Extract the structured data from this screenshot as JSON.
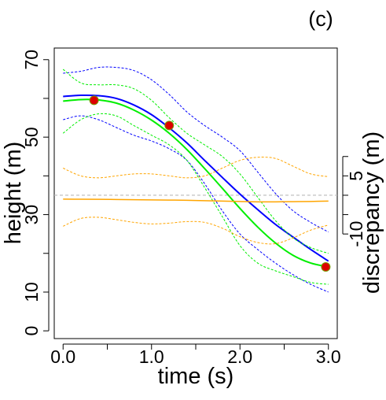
{
  "panel_label": "(c)",
  "chart_data": {
    "type": "line",
    "xlabel": "time (s)",
    "ylabel": "height (m)",
    "y2label": "discrepancy (m)",
    "xlim": [
      -0.1,
      3.1
    ],
    "ylim": [
      -2,
      73
    ],
    "x_ticks": [
      "0.0",
      "1.0",
      "2.0",
      "3.0"
    ],
    "x_tick_values": [
      0,
      1,
      2,
      3
    ],
    "y_tick_labels": [
      "0",
      "10",
      "30",
      "50",
      "70"
    ],
    "y_tick_label_values": [
      0,
      10,
      30,
      50,
      70
    ],
    "y_minor_ticks": [
      20,
      40,
      60
    ],
    "y2_zero_at": 35,
    "y2_tick_labels": [
      "5",
      "-10"
    ],
    "y2_tick_label_values": [
      5,
      -10
    ],
    "y2_ticks": [
      10,
      5,
      0,
      -5,
      -10
    ],
    "grid": false,
    "colors": {
      "blue": "#0000ff",
      "green": "#00ee00",
      "orange": "#ffa500",
      "red": "#dd0000",
      "zero": "#bbbbbb"
    },
    "series": [
      {
        "id": "blue_mean",
        "color": "#0000ff",
        "dashed": false,
        "width": 2,
        "x": [
          0,
          0.2,
          0.4,
          0.6,
          0.8,
          1.0,
          1.2,
          1.4,
          1.6,
          1.8,
          2.0,
          2.2,
          2.4,
          2.6,
          2.8,
          3.0
        ],
        "y": [
          60.5,
          60.8,
          60.7,
          60.0,
          58.3,
          55.8,
          52.4,
          48.5,
          44.0,
          39.6,
          35.3,
          31.3,
          27.5,
          24.2,
          21.0,
          18.0
        ]
      },
      {
        "id": "blue_upper",
        "color": "#0000ff",
        "dashed": true,
        "width": 1,
        "x": [
          0,
          0.2,
          0.4,
          0.6,
          0.8,
          1.0,
          1.2,
          1.4,
          1.6,
          1.8,
          2.0,
          2.2,
          2.4,
          2.6,
          2.8,
          3.0
        ],
        "y": [
          66.5,
          67.0,
          68.0,
          68.0,
          67.2,
          64.8,
          61.0,
          56.5,
          53.0,
          50.0,
          46.5,
          41.0,
          35.5,
          31.0,
          28.0,
          25.5
        ]
      },
      {
        "id": "blue_lower",
        "color": "#0000ff",
        "dashed": true,
        "width": 1,
        "x": [
          0,
          0.2,
          0.4,
          0.6,
          0.8,
          1.0,
          1.2,
          1.4,
          1.6,
          1.8,
          2.0,
          2.2,
          2.4,
          2.6,
          2.8,
          3.0
        ],
        "y": [
          54.5,
          55.5,
          54.5,
          52.5,
          50.5,
          49.0,
          47.0,
          44.0,
          38.0,
          31.0,
          25.0,
          21.0,
          17.5,
          14.5,
          12.0,
          10.0
        ]
      },
      {
        "id": "green_mean",
        "color": "#00ee00",
        "dashed": false,
        "width": 2,
        "x": [
          0,
          0.2,
          0.4,
          0.6,
          0.8,
          1.0,
          1.2,
          1.4,
          1.6,
          1.8,
          2.0,
          2.2,
          2.4,
          2.6,
          2.8,
          3.0
        ],
        "y": [
          59.3,
          59.7,
          59.6,
          58.8,
          57.0,
          54.4,
          51.0,
          46.8,
          41.9,
          36.8,
          31.6,
          26.8,
          22.7,
          19.5,
          17.5,
          16.5
        ]
      },
      {
        "id": "green_upper",
        "color": "#00ee00",
        "dashed": true,
        "width": 1,
        "x": [
          0,
          0.2,
          0.4,
          0.6,
          0.8,
          1.0,
          1.2,
          1.4,
          1.6,
          1.8,
          2.0,
          2.2,
          2.4,
          2.6,
          2.8,
          3.0
        ],
        "y": [
          67.5,
          64.0,
          63.5,
          63.5,
          62.5,
          59.5,
          55.0,
          51.0,
          48.0,
          45.0,
          40.5,
          34.5,
          28.5,
          24.0,
          21.5,
          20.0
        ]
      },
      {
        "id": "green_lower",
        "color": "#00ee00",
        "dashed": true,
        "width": 1,
        "x": [
          0,
          0.2,
          0.4,
          0.6,
          0.8,
          1.0,
          1.2,
          1.4,
          1.6,
          1.8,
          2.0,
          2.2,
          2.4,
          2.6,
          2.8,
          3.0
        ],
        "y": [
          51.0,
          54.5,
          56.0,
          55.5,
          53.0,
          50.5,
          48.0,
          44.0,
          37.0,
          29.5,
          22.0,
          17.5,
          15.5,
          14.0,
          12.5,
          12.0
        ]
      },
      {
        "id": "orange_mean",
        "color": "#ffa500",
        "dashed": false,
        "width": 1.5,
        "x": [
          0,
          0.2,
          0.4,
          0.6,
          0.8,
          1.0,
          1.2,
          1.4,
          1.6,
          1.8,
          2.0,
          2.2,
          2.4,
          2.6,
          2.8,
          3.0
        ],
        "y": [
          34.0,
          33.98,
          33.95,
          33.9,
          33.85,
          33.8,
          33.75,
          33.7,
          33.6,
          33.5,
          33.4,
          33.3,
          33.3,
          33.35,
          33.4,
          33.5
        ]
      },
      {
        "id": "orange_upper",
        "color": "#ffa500",
        "dashed": true,
        "width": 1,
        "x": [
          0,
          0.2,
          0.4,
          0.6,
          0.8,
          1.0,
          1.2,
          1.4,
          1.6,
          1.8,
          2.0,
          2.2,
          2.4,
          2.6,
          2.8,
          3.0
        ],
        "y": [
          42.0,
          40.0,
          39.5,
          40.0,
          40.5,
          40.5,
          40.0,
          39.5,
          40.0,
          42.0,
          44.0,
          44.8,
          44.5,
          42.5,
          40.5,
          39.8
        ]
      },
      {
        "id": "orange_lower",
        "color": "#ffa500",
        "dashed": true,
        "width": 1,
        "x": [
          0,
          0.2,
          0.4,
          0.6,
          0.8,
          1.0,
          1.2,
          1.4,
          1.6,
          1.8,
          2.0,
          2.2,
          2.4,
          2.6,
          2.8,
          3.0
        ],
        "y": [
          27.0,
          29.0,
          29.3,
          28.7,
          28.0,
          27.6,
          27.8,
          28.2,
          28.0,
          26.5,
          24.3,
          22.8,
          22.5,
          24.0,
          26.0,
          27.3
        ]
      }
    ],
    "points": {
      "color": "#dd0000",
      "x": [
        0.35,
        1.2,
        2.97
      ],
      "y": [
        59.5,
        53.0,
        16.5
      ]
    }
  }
}
